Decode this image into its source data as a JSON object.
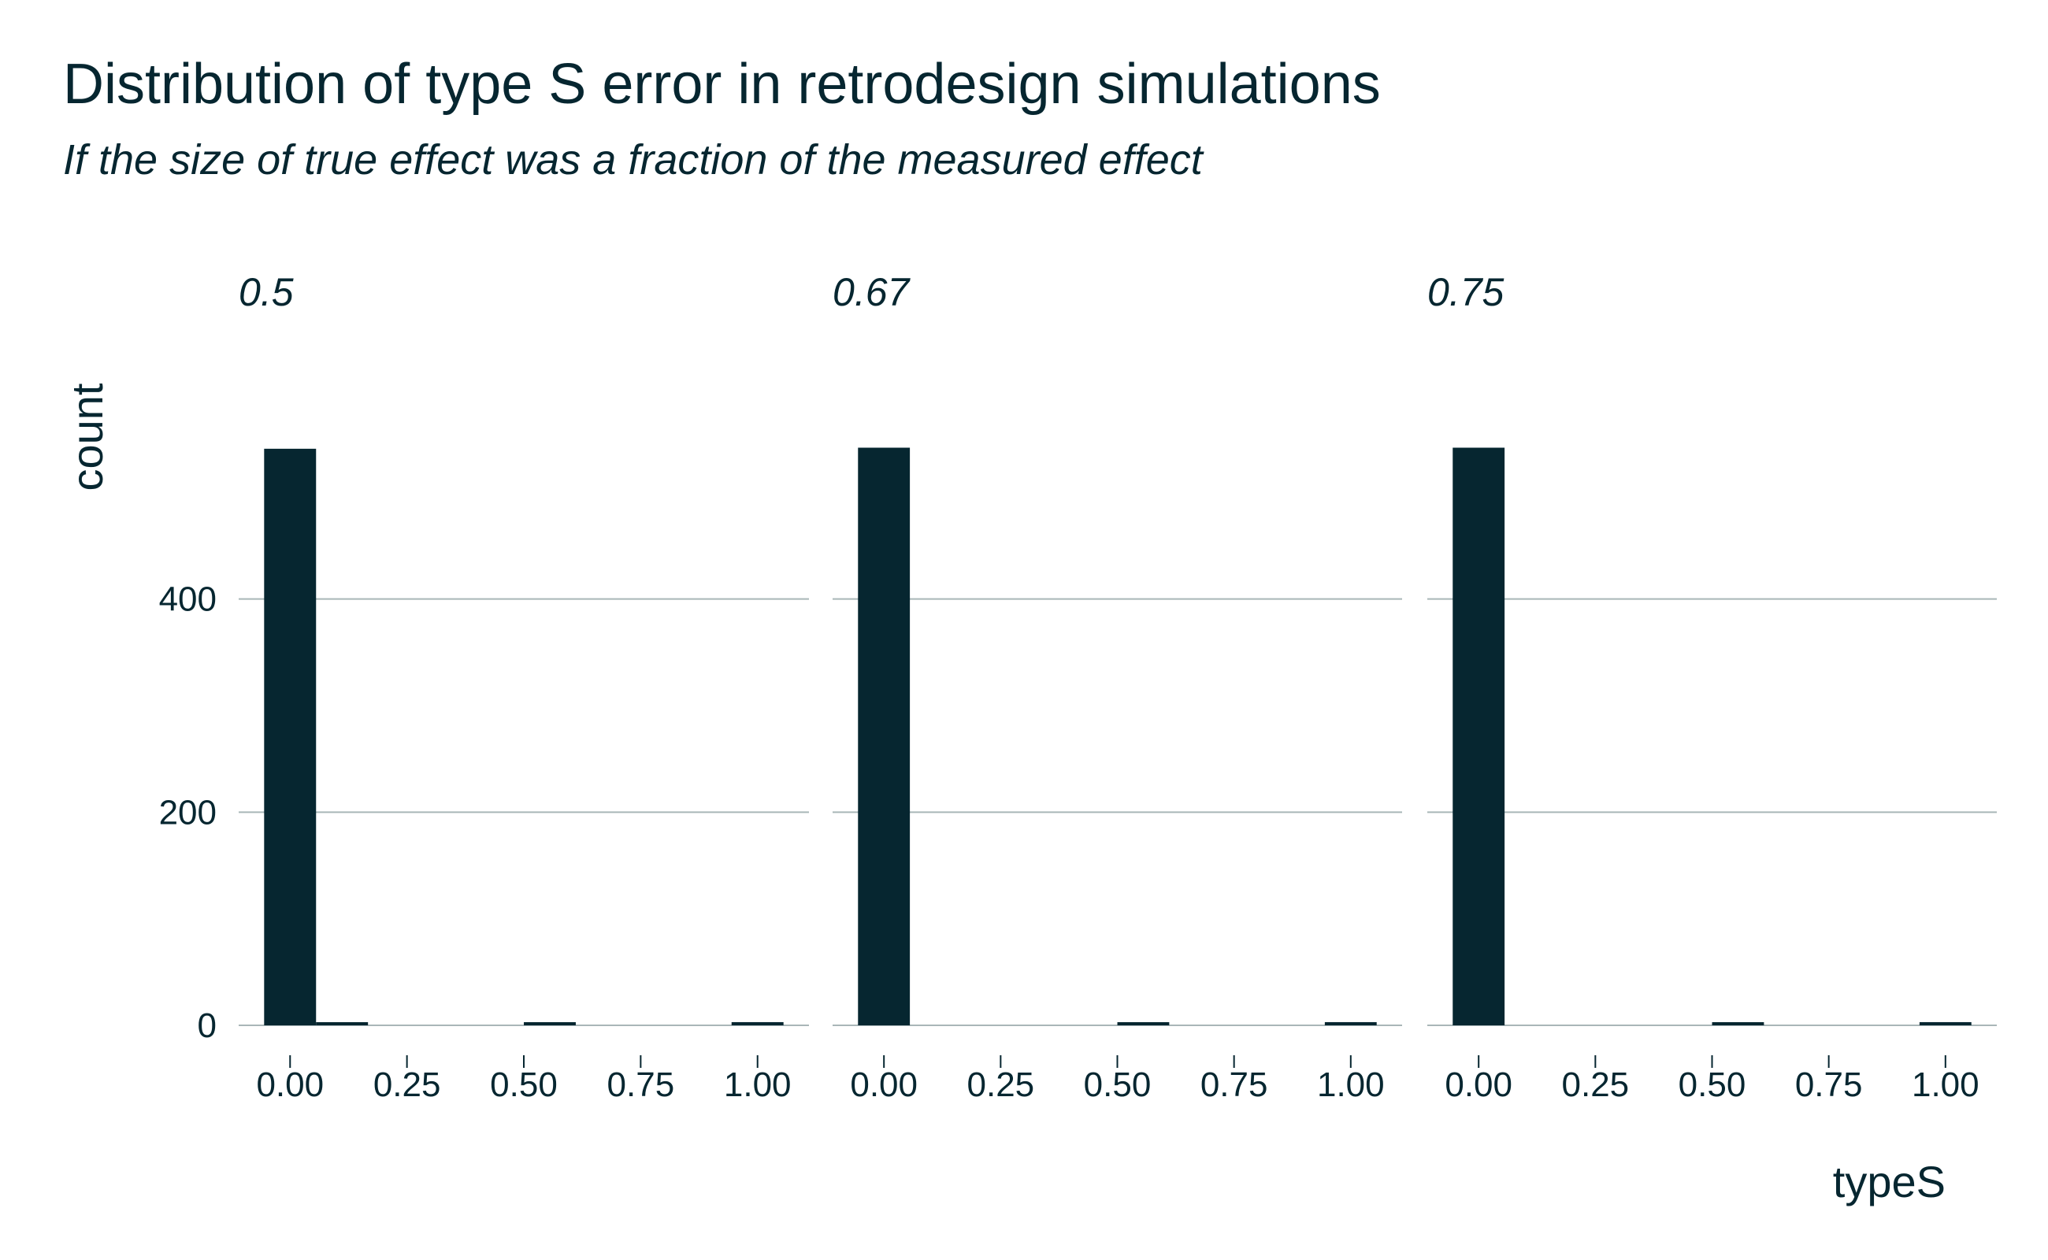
{
  "header": {
    "title": "Distribution of type S error in retrodesign simulations",
    "subtitle": "If the size of true effect was a fraction of the measured effect"
  },
  "colors": {
    "bar": "#062630",
    "text": "#062630",
    "grid": "#a9b6b8",
    "background": "#ffffff"
  },
  "chart_data": {
    "type": "bar",
    "title": "Distribution of type S error in retrodesign simulations",
    "subtitle": "If the size of true effect was a fraction of the measured effect",
    "xlabel": "typeS",
    "ylabel": "count",
    "x_ticks": [
      "0.00",
      "0.25",
      "0.50",
      "0.75",
      "1.00"
    ],
    "y_ticks": [
      "0",
      "200",
      "400"
    ],
    "xlim": [
      -0.11,
      1.11
    ],
    "ylim": [
      0,
      600
    ],
    "grid": true,
    "bin_width": 0.1111,
    "bin_centers": [
      0.0,
      0.1111,
      0.2222,
      0.3333,
      0.4444,
      0.5556,
      0.6667,
      0.7778,
      0.8889,
      1.0
    ],
    "facets": [
      {
        "label": "0.5",
        "counts": [
          541,
          1,
          0,
          0,
          0,
          1,
          0,
          0,
          0,
          3
        ]
      },
      {
        "label": "0.67",
        "counts": [
          542,
          0,
          0,
          0,
          0,
          1,
          0,
          0,
          0,
          3
        ]
      },
      {
        "label": "0.75",
        "counts": [
          542,
          0,
          0,
          0,
          0,
          1,
          0,
          0,
          0,
          3
        ]
      }
    ]
  }
}
